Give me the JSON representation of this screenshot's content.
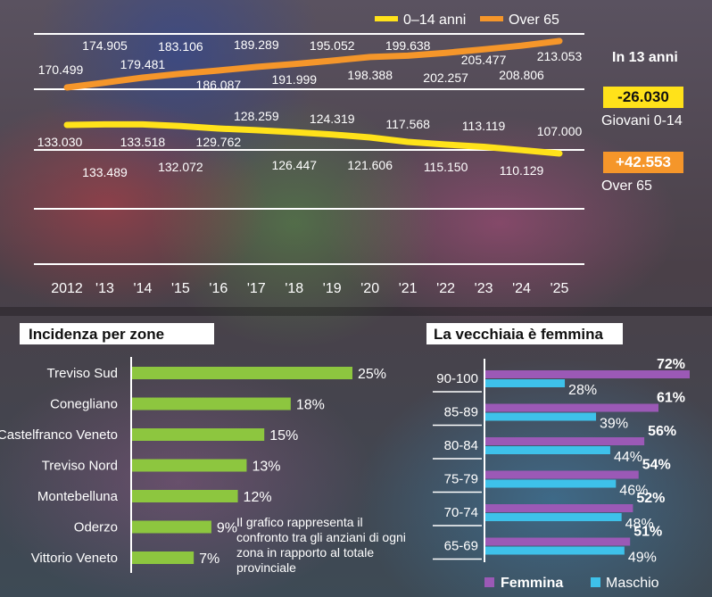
{
  "chart_data": [
    {
      "type": "line",
      "x": [
        "2012",
        "'13",
        "'14",
        "'15",
        "'16",
        "'17",
        "'18",
        "'19",
        "'20",
        "'21",
        "'22",
        "'23",
        "'24",
        "'25"
      ],
      "series": [
        {
          "name": "0-14 anni",
          "color": "#ffe21a",
          "values": [
            133030,
            133489,
            133518,
            132072,
            129762,
            128259,
            126447,
            124319,
            121606,
            117568,
            115150,
            113119,
            110129,
            107000
          ],
          "labels": [
            "133.030",
            "133.489",
            "133.518",
            "132.072",
            "129.762",
            "128.259",
            "126.447",
            "124.319",
            "121.606",
            "117.568",
            "115.150",
            "113.119",
            "110.129",
            "107.000"
          ]
        },
        {
          "name": "Over 65",
          "color": "#f5962a",
          "values": [
            170499,
            174905,
            179481,
            183106,
            186087,
            189289,
            191999,
            195052,
            198388,
            199638,
            202257,
            205477,
            208806,
            213053
          ],
          "labels": [
            "170.499",
            "174.905",
            "179.481",
            "183.106",
            "186.087",
            "189.289",
            "191.999",
            "195.052",
            "198.388",
            "199.638",
            "202.257",
            "205.477",
            "208.806",
            "213.053"
          ]
        }
      ],
      "legend": "top-right"
    },
    {
      "type": "bar",
      "title": "Incidenza per zone",
      "categories": [
        "Treviso Sud",
        "Conegliano",
        "Castelfranco Veneto",
        "Treviso Nord",
        "Montebelluna",
        "Oderzo",
        "Vittorio Veneto"
      ],
      "values": [
        25,
        18,
        15,
        13,
        12,
        9,
        7
      ],
      "labels": [
        "25%",
        "18%",
        "15%",
        "13%",
        "12%",
        "9%",
        "7%"
      ],
      "color": "#8dc63f",
      "note": "Il grafico rappresenta il confronto tra gli anziani di ogni zona in rapporto al totale provinciale"
    },
    {
      "type": "bar",
      "title": "La vecchiaia è femmina",
      "categories": [
        "90-100",
        "85-89",
        "80-84",
        "75-79",
        "70-74",
        "65-69"
      ],
      "series": [
        {
          "name": "Femmina",
          "color": "#9b59b6",
          "values": [
            72,
            61,
            56,
            54,
            52,
            51
          ],
          "labels": [
            "72%",
            "61%",
            "56%",
            "54%",
            "52%",
            "51%"
          ]
        },
        {
          "name": "Maschio",
          "color": "#3ec1ea",
          "values": [
            28,
            39,
            44,
            46,
            48,
            49
          ],
          "labels": [
            "28%",
            "39%",
            "44%",
            "46%",
            "48%",
            "49%"
          ]
        }
      ],
      "legend": "bottom"
    }
  ],
  "summary": {
    "title": "In 13 anni",
    "young_change": "-26.030",
    "young_label": "Giovani 0-14",
    "old_change": "+42.553",
    "old_label": "Over 65",
    "young_color": "#ffe21a",
    "old_color": "#f5962a"
  }
}
